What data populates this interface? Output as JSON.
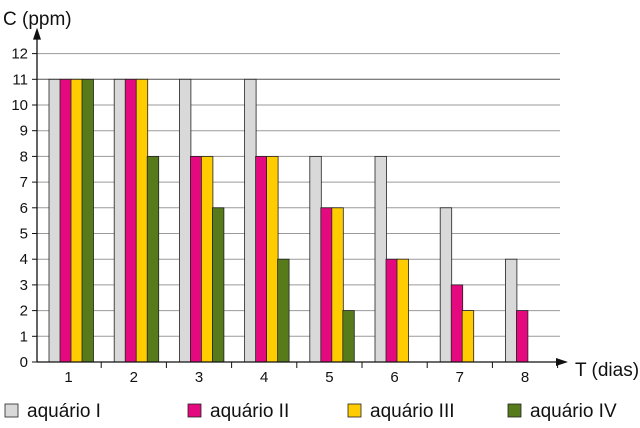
{
  "chart_data": {
    "type": "bar",
    "title": "",
    "ylabel": "C (ppm)",
    "xlabel": "T (dias)",
    "ylim": [
      0,
      12
    ],
    "yticks": [
      0,
      1,
      2,
      3,
      4,
      5,
      6,
      7,
      8,
      9,
      10,
      11,
      12
    ],
    "categories": [
      "1",
      "2",
      "3",
      "4",
      "5",
      "6",
      "7",
      "8"
    ],
    "grid": true,
    "legend_position": "bottom",
    "series": [
      {
        "name": "aquário I",
        "color": "#d9d9d9",
        "values": [
          11,
          11,
          11,
          11,
          8,
          8,
          6,
          4
        ]
      },
      {
        "name": "aquário II",
        "color": "#e5097f",
        "values": [
          11,
          11,
          8,
          8,
          6,
          4,
          3,
          2
        ]
      },
      {
        "name": "aquário III",
        "color": "#ffcc00",
        "values": [
          11,
          11,
          8,
          8,
          6,
          4,
          2,
          0
        ]
      },
      {
        "name": "aquário IV",
        "color": "#577a1b",
        "values": [
          11,
          8,
          6,
          4,
          2,
          0,
          0,
          0
        ]
      }
    ]
  }
}
